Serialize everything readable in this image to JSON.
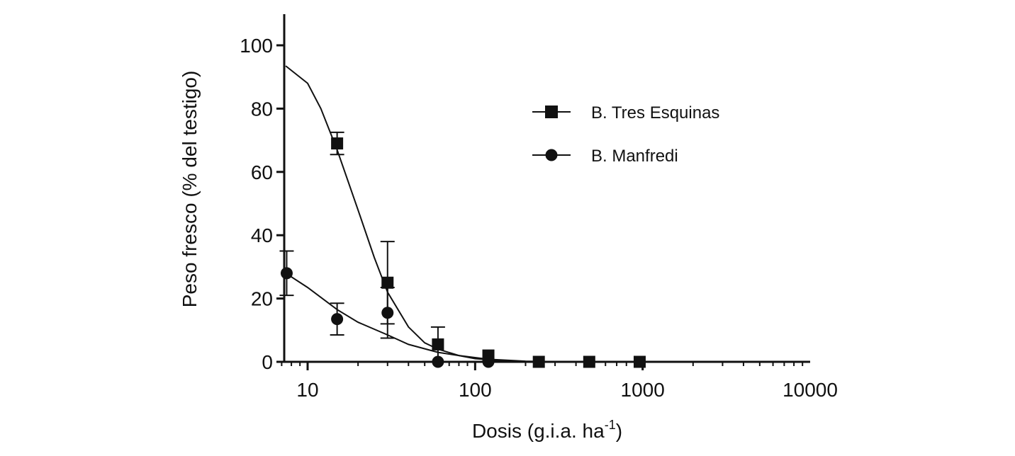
{
  "chart_data": {
    "type": "scatter",
    "x_scale": "log",
    "xlim": [
      7,
      10000
    ],
    "ylim": [
      0,
      110
    ],
    "x_ticks": [
      10,
      100,
      1000,
      10000
    ],
    "x_tick_labels": [
      "10",
      "100",
      "1000",
      "10000"
    ],
    "y_ticks": [
      0,
      20,
      40,
      60,
      80,
      100
    ],
    "y_tick_labels": [
      "0",
      "20",
      "40",
      "60",
      "80",
      "100"
    ],
    "xlabel_main": "Dosis (g.i.a. ha",
    "xlabel_sup": "-1",
    "xlabel_end": ")",
    "ylabel": "Peso fresco (% del testigo)",
    "grid": false,
    "legend_position": "top-right",
    "series": [
      {
        "name": "B. Tres Esquinas",
        "marker": "square",
        "points": [
          {
            "x": 15,
            "y": 69,
            "err": 3.5
          },
          {
            "x": 30,
            "y": 25,
            "err": 13
          },
          {
            "x": 60,
            "y": 5.5,
            "err": 5.5
          },
          {
            "x": 120,
            "y": 2,
            "err": 0
          },
          {
            "x": 240,
            "y": 0,
            "err": 0
          },
          {
            "x": 480,
            "y": 0,
            "err": 0
          },
          {
            "x": 960,
            "y": 0,
            "err": 0
          }
        ],
        "curve": [
          [
            7.4,
            93.5
          ],
          [
            10,
            88
          ],
          [
            12,
            80
          ],
          [
            15,
            67
          ],
          [
            20,
            48
          ],
          [
            25,
            33
          ],
          [
            30,
            22
          ],
          [
            40,
            11
          ],
          [
            50,
            6
          ],
          [
            60,
            4
          ],
          [
            80,
            2
          ],
          [
            100,
            1
          ],
          [
            150,
            0.3
          ],
          [
            240,
            0
          ],
          [
            10000,
            0
          ]
        ]
      },
      {
        "name": "B. Manfredi",
        "marker": "circle",
        "points": [
          {
            "x": 7.5,
            "y": 28,
            "err": 7
          },
          {
            "x": 15,
            "y": 13.5,
            "err": 5
          },
          {
            "x": 30,
            "y": 15.5,
            "err": 8
          },
          {
            "x": 60,
            "y": 0,
            "err": 0
          },
          {
            "x": 120,
            "y": 0,
            "err": 0
          }
        ],
        "curve": [
          [
            7.4,
            28
          ],
          [
            10,
            23.5
          ],
          [
            15,
            16.5
          ],
          [
            20,
            12.5
          ],
          [
            30,
            8.5
          ],
          [
            40,
            5.5
          ],
          [
            60,
            3
          ],
          [
            80,
            2
          ],
          [
            120,
            0.8
          ],
          [
            200,
            0.2
          ],
          [
            300,
            0
          ],
          [
            10000,
            0
          ]
        ]
      }
    ]
  }
}
